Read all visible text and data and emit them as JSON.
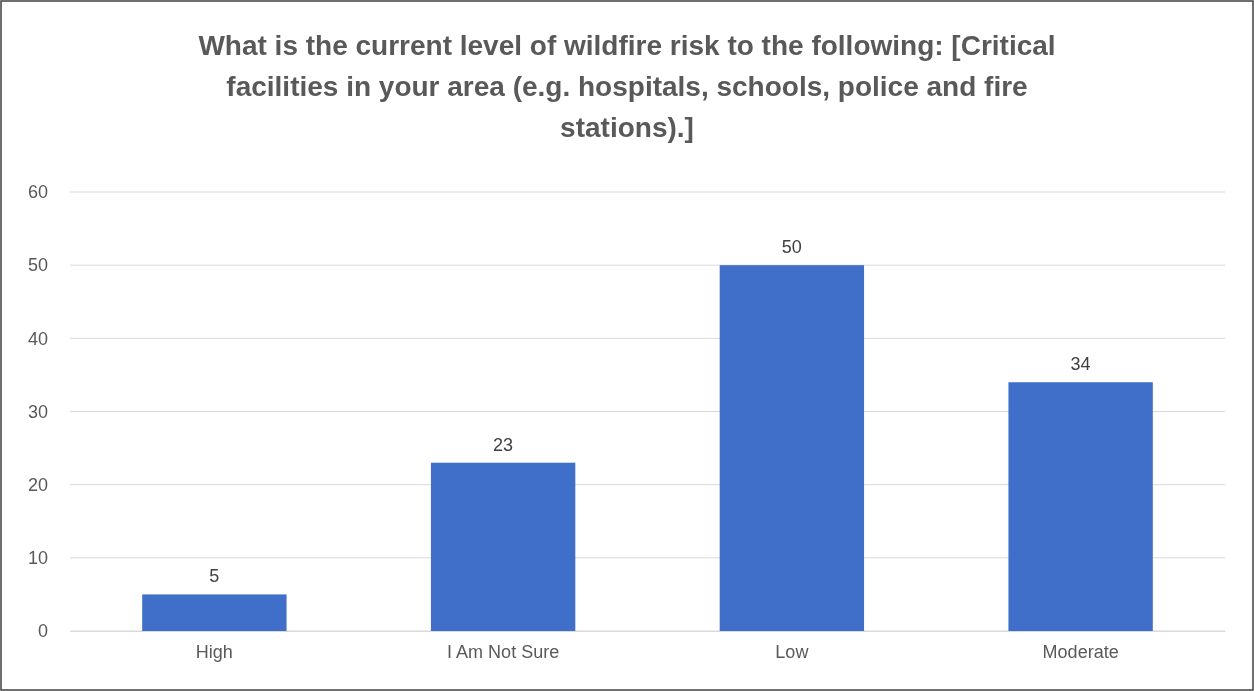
{
  "chart_data": {
    "type": "bar",
    "title": "What is the current level of wildfire risk to the following: [Critical facilities in your area (e.g. hospitals, schools, police and fire stations).]",
    "categories": [
      "High",
      "I Am Not Sure",
      "Low",
      "Moderate"
    ],
    "values": [
      5,
      23,
      50,
      34
    ],
    "color": "#3f6fc9",
    "ylim": [
      0,
      60
    ],
    "yticks": [
      0,
      10,
      20,
      30,
      40,
      50,
      60
    ],
    "grid": "y",
    "data_labels": true
  }
}
